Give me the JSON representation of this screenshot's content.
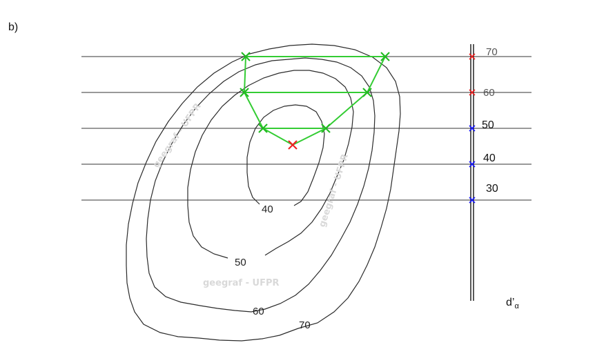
{
  "panel_label": "b)",
  "contour_labels": [
    {
      "id": "c40",
      "text": "40"
    },
    {
      "id": "c50",
      "text": "50"
    },
    {
      "id": "c60",
      "text": "60"
    },
    {
      "id": "c70",
      "text": "70"
    }
  ],
  "profile_levels": [
    {
      "text": "70",
      "marker": "red"
    },
    {
      "text": "60",
      "marker": "red"
    },
    {
      "text": "50",
      "marker": "blue"
    },
    {
      "text": "40",
      "marker": "blue"
    },
    {
      "text": "30",
      "marker": "blue"
    }
  ],
  "axis_label": "d’",
  "axis_subscript": "α",
  "watermark": "geegraf - UFPR",
  "colors": {
    "contour": "#2a2a2a",
    "profile_line": "#33cc33",
    "marker_red": "#ee2222",
    "marker_blue": "#1a1aff",
    "watermark": "#d9d9d9"
  }
}
